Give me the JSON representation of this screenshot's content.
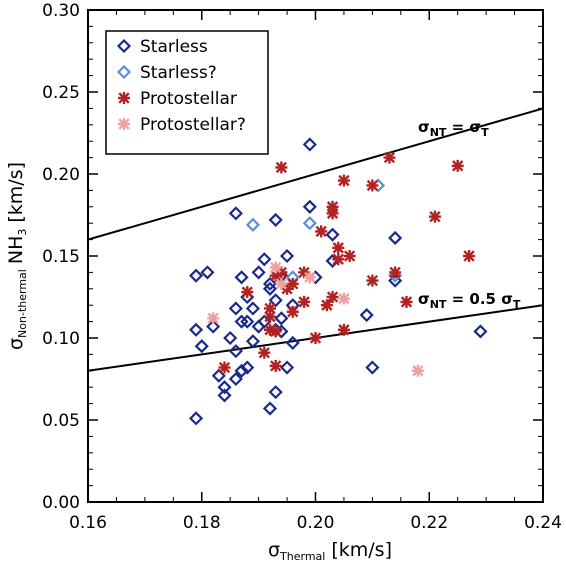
{
  "chart_data": {
    "type": "scatter",
    "xlabel": {
      "symbol": "σ",
      "sub": "Thermal",
      "unit": "[km/s]"
    },
    "ylabel": {
      "symbol": "σ",
      "sub": "Non-thermal",
      "species": "NH",
      "species_sub": "3",
      "unit": "[km/s]"
    },
    "xlim": [
      0.16,
      0.24
    ],
    "ylim": [
      0.0,
      0.3
    ],
    "xticks": [
      0.16,
      0.18,
      0.2,
      0.22,
      0.24
    ],
    "xticklabels": [
      "0.16",
      "0.18",
      "0.20",
      "0.22",
      "0.24"
    ],
    "yticks": [
      0.0,
      0.05,
      0.1,
      0.15,
      0.2,
      0.25,
      0.3
    ],
    "yticklabels": [
      "0.00",
      "0.05",
      "0.10",
      "0.15",
      "0.20",
      "0.25",
      "0.30"
    ],
    "grid": false,
    "legend_position": "top-left",
    "series": [
      {
        "name": "Starless",
        "marker": "diamond",
        "color": "#1a2a8c",
        "x": [
          0.179,
          0.179,
          0.18,
          0.181,
          0.182,
          0.184,
          0.184,
          0.185,
          0.186,
          0.186,
          0.186,
          0.187,
          0.187,
          0.188,
          0.188,
          0.189,
          0.189,
          0.19,
          0.191,
          0.191,
          0.192,
          0.192,
          0.193,
          0.193,
          0.193,
          0.193,
          0.194,
          0.194,
          0.194,
          0.195,
          0.195,
          0.196,
          0.199,
          0.199,
          0.2,
          0.203,
          0.203,
          0.209,
          0.21,
          0.214,
          0.214,
          0.229,
          0.179,
          0.183,
          0.187,
          0.19,
          0.192,
          0.196,
          0.186,
          0.188
        ],
        "y": [
          0.138,
          0.105,
          0.095,
          0.14,
          0.107,
          0.065,
          0.07,
          0.1,
          0.176,
          0.075,
          0.118,
          0.08,
          0.137,
          0.082,
          0.125,
          0.098,
          0.118,
          0.107,
          0.148,
          0.11,
          0.133,
          0.057,
          0.172,
          0.123,
          0.105,
          0.067,
          0.138,
          0.112,
          0.104,
          0.15,
          0.082,
          0.097,
          0.218,
          0.18,
          0.137,
          0.163,
          0.147,
          0.114,
          0.082,
          0.161,
          0.135,
          0.104,
          0.051,
          0.077,
          0.11,
          0.14,
          0.13,
          0.12,
          0.092,
          0.11
        ]
      },
      {
        "name": "Starless?",
        "marker": "diamond",
        "color": "#5b8fd6",
        "x": [
          0.189,
          0.196,
          0.199,
          0.211,
          0.214
        ],
        "y": [
          0.169,
          0.137,
          0.17,
          0.193,
          0.138
        ]
      },
      {
        "name": "Protostellar",
        "marker": "asterisk",
        "color": "#b22222",
        "x": [
          0.184,
          0.188,
          0.191,
          0.192,
          0.192,
          0.193,
          0.193,
          0.193,
          0.194,
          0.194,
          0.195,
          0.196,
          0.198,
          0.2,
          0.201,
          0.203,
          0.203,
          0.203,
          0.204,
          0.205,
          0.205,
          0.206,
          0.21,
          0.213,
          0.216,
          0.221,
          0.225,
          0.227,
          0.192,
          0.196,
          0.198,
          0.202,
          0.204,
          0.21,
          0.214
        ],
        "y": [
          0.082,
          0.128,
          0.091,
          0.113,
          0.105,
          0.138,
          0.104,
          0.083,
          0.204,
          0.14,
          0.13,
          0.133,
          0.122,
          0.1,
          0.165,
          0.18,
          0.176,
          0.125,
          0.155,
          0.196,
          0.105,
          0.15,
          0.193,
          0.21,
          0.122,
          0.174,
          0.205,
          0.15,
          0.118,
          0.116,
          0.14,
          0.12,
          0.148,
          0.135,
          0.14
        ]
      },
      {
        "name": "Protostellar?",
        "marker": "asterisk",
        "color": "#f0a0a0",
        "x": [
          0.182,
          0.193,
          0.194,
          0.199,
          0.205,
          0.218
        ],
        "y": [
          0.112,
          0.143,
          0.133,
          0.137,
          0.124,
          0.08
        ]
      }
    ],
    "lines": [
      {
        "label": "σNT = σT",
        "x": [
          0.16,
          0.24
        ],
        "y": [
          0.16,
          0.24
        ]
      },
      {
        "label": "σNT = 0.5 σT",
        "x": [
          0.16,
          0.24
        ],
        "y": [
          0.08,
          0.12
        ]
      }
    ],
    "annotations": {
      "line1": {
        "sym": "σ",
        "sub": "NT",
        "eq": " = ",
        "rhs": "σ",
        "rhs_sub": "T"
      },
      "line2": {
        "sym": "σ",
        "sub": "NT",
        "eq": " = 0.5 ",
        "rhs": "σ",
        "rhs_sub": "T"
      }
    }
  }
}
